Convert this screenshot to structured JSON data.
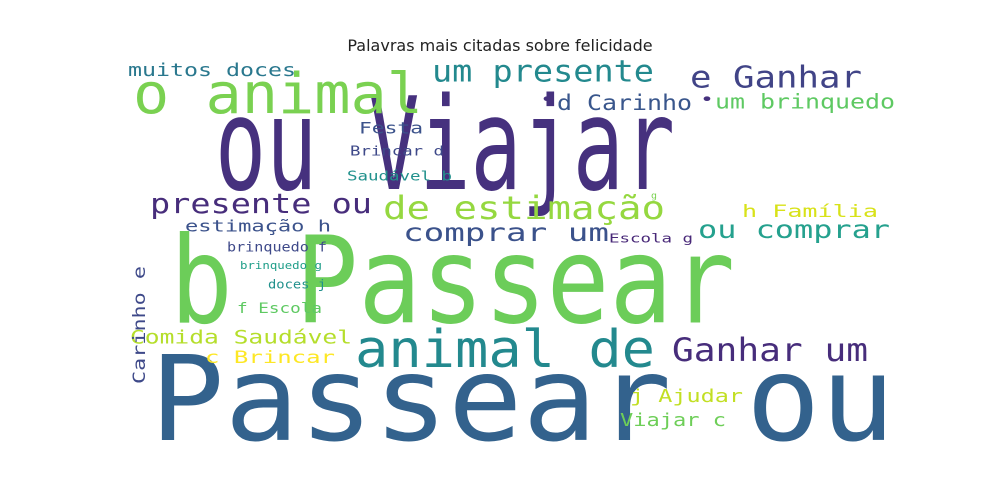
{
  "chart_data": {
    "type": "wordcloud",
    "title": "Palavras mais citadas sobre felicidade",
    "words": [
      {
        "text": "ou Viajar",
        "weight": 100,
        "color": "#46317e"
      },
      {
        "text": "b Passear",
        "weight": 100,
        "color": "#6ccd59"
      },
      {
        "text": "Passear ou",
        "weight": 100,
        "color": "#33628d"
      },
      {
        "text": "o animal",
        "weight": 52,
        "color": "#7ad151"
      },
      {
        "text": "animal de",
        "weight": 45,
        "color": "#23898e"
      },
      {
        "text": "um presente",
        "weight": 32,
        "color": "#23898e"
      },
      {
        "text": "e Ganhar",
        "weight": 32,
        "color": "#414487"
      },
      {
        "text": "de estimação",
        "weight": 32,
        "color": "#95d840"
      },
      {
        "text": "Ganhar um",
        "weight": 32,
        "color": "#472d7b"
      },
      {
        "text": "presente ou",
        "weight": 28,
        "color": "#472d7b"
      },
      {
        "text": "comprar um",
        "weight": 28,
        "color": "#3b528b"
      },
      {
        "text": "ou comprar",
        "weight": 28,
        "color": "#25a18e"
      },
      {
        "text": "d Carinho",
        "weight": 20,
        "color": "#39568c"
      },
      {
        "text": "um brinquedo",
        "weight": 20,
        "color": "#5ec962"
      },
      {
        "text": "muitos doces",
        "weight": 18,
        "color": "#2a788e"
      },
      {
        "text": "Comida Saudável",
        "weight": 19,
        "color": "#b5de2b"
      },
      {
        "text": "c Brincar",
        "weight": 18,
        "color": "#fde725"
      },
      {
        "text": "Festa",
        "weight": 17,
        "color": "#3b528b"
      },
      {
        "text": "j Ajudar",
        "weight": 18,
        "color": "#c2df23"
      },
      {
        "text": "Viajar c",
        "weight": 18,
        "color": "#6ece58"
      },
      {
        "text": "h Família",
        "weight": 17,
        "color": "#d8e219"
      },
      {
        "text": "Carinho e",
        "weight": 17,
        "color": "#3e4989"
      },
      {
        "text": "estimação h",
        "weight": 17,
        "color": "#3b528b"
      },
      {
        "text": "Brincar d",
        "weight": 14,
        "color": "#3e4989"
      },
      {
        "text": "Saudável b",
        "weight": 14,
        "color": "#21918c"
      },
      {
        "text": "f Escola",
        "weight": 14,
        "color": "#5ec962"
      },
      {
        "text": "brinquedo f",
        "weight": 13,
        "color": "#3e4989"
      },
      {
        "text": "Escola g",
        "weight": 13,
        "color": "#482878"
      },
      {
        "text": "doces j",
        "weight": 12,
        "color": "#21918c"
      },
      {
        "text": "brinquedo g",
        "weight": 11,
        "color": "#1f9e89"
      },
      {
        "text": "g",
        "weight": 8,
        "color": "#7ad151"
      },
      {
        "text": "•",
        "weight": 20,
        "color": "#46317e"
      },
      {
        "text": "•",
        "weight": 20,
        "color": "#46317e"
      }
    ]
  }
}
